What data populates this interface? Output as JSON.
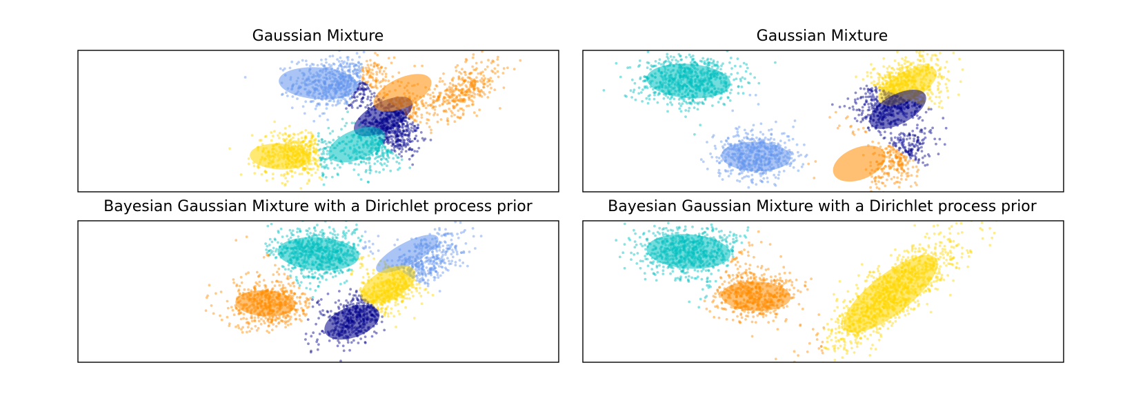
{
  "chart_data": [
    {
      "type": "scatter",
      "title": "Gaussian Mixture",
      "axes_visible": false,
      "grid": false,
      "xlim": [
        -10,
        10
      ],
      "ylim": [
        -3,
        3
      ],
      "clusters": [
        {
          "cx": 1.0,
          "cy": 1.6,
          "sx": 1.0,
          "sy": 0.55,
          "rho": 0.0,
          "n": 700
        },
        {
          "cx": 3.0,
          "cy": 0.1,
          "sx": 0.8,
          "sy": 0.6,
          "rho": 0.6,
          "n": 500
        },
        {
          "cx": 6.0,
          "cy": 1.3,
          "sx": 0.75,
          "sy": 0.6,
          "rho": 0.55,
          "n": 350
        },
        {
          "cx": 2.9,
          "cy": -1.0,
          "sx": 0.7,
          "sy": 0.55,
          "rho": 0.45,
          "n": 350
        },
        {
          "cx": -0.8,
          "cy": -1.4,
          "sx": 0.9,
          "sy": 0.5,
          "rho": 0.0,
          "n": 550
        }
      ],
      "components": [
        {
          "color": "#6495ed",
          "mean": [
            0.0,
            1.6
          ],
          "width": 3.3,
          "height": 1.35,
          "angle": -4
        },
        {
          "color": "#00008b",
          "mean": [
            2.7,
            0.2
          ],
          "width": 2.7,
          "height": 1.2,
          "angle": 28
        },
        {
          "color": "#ff8c00",
          "mean": [
            3.5,
            1.2
          ],
          "width": 2.6,
          "height": 1.25,
          "angle": 25
        },
        {
          "color": "#00bfbf",
          "mean": [
            1.6,
            -1.0
          ],
          "width": 2.5,
          "height": 1.25,
          "angle": 22
        },
        {
          "color": "#ffd700",
          "mean": [
            -1.6,
            -1.5
          ],
          "width": 2.5,
          "height": 1.1,
          "angle": -3
        }
      ]
    },
    {
      "type": "scatter",
      "title": "Gaussian Mixture",
      "axes_visible": false,
      "grid": false,
      "xlim": [
        -10,
        10
      ],
      "ylim": [
        -3,
        3
      ],
      "clusters": [
        {
          "cx": -5.6,
          "cy": 1.7,
          "sx": 1.1,
          "sy": 0.55,
          "rho": 0.0,
          "n": 700
        },
        {
          "cx": -2.8,
          "cy": -1.5,
          "sx": 0.85,
          "sy": 0.5,
          "rho": 0.0,
          "n": 550
        },
        {
          "cx": 3.2,
          "cy": -1.5,
          "sx": 0.65,
          "sy": 0.6,
          "rho": 0.4,
          "n": 350
        },
        {
          "cx": 3.1,
          "cy": 0.7,
          "sx": 0.9,
          "sy": 0.55,
          "rho": 0.55,
          "n": 450
        },
        {
          "cx": 3.2,
          "cy": 1.7,
          "sx": 0.85,
          "sy": 0.6,
          "rho": 0.6,
          "n": 450
        }
      ],
      "components": [
        {
          "color": "#00bfbf",
          "mean": [
            -5.6,
            1.7
          ],
          "width": 3.5,
          "height": 1.45,
          "angle": -4
        },
        {
          "color": "#6495ed",
          "mean": [
            -2.8,
            -1.5
          ],
          "width": 2.9,
          "height": 1.25,
          "angle": -2
        },
        {
          "color": "#ffd700",
          "mean": [
            3.5,
            1.5
          ],
          "width": 2.7,
          "height": 1.2,
          "angle": 28
        },
        {
          "color": "#00008b",
          "mean": [
            3.1,
            0.5
          ],
          "width": 2.6,
          "height": 1.25,
          "angle": 28
        },
        {
          "color": "#ff8c00",
          "mean": [
            1.5,
            -1.8
          ],
          "width": 2.3,
          "height": 1.35,
          "angle": 22
        }
      ]
    },
    {
      "type": "scatter",
      "title": "Bayesian Gaussian Mixture with a Dirichlet process prior",
      "axes_visible": false,
      "grid": false,
      "xlim": [
        -10,
        10
      ],
      "ylim": [
        -3,
        3
      ],
      "clusters": [
        {
          "cx": 0.0,
          "cy": 1.6,
          "sx": 1.0,
          "sy": 0.55,
          "rho": 0.0,
          "n": 700
        },
        {
          "cx": 3.0,
          "cy": 0.1,
          "sx": 0.8,
          "sy": 0.6,
          "rho": 0.6,
          "n": 500
        },
        {
          "cx": 4.6,
          "cy": 1.4,
          "sx": 0.75,
          "sy": 0.6,
          "rho": 0.55,
          "n": 350
        },
        {
          "cx": 1.5,
          "cy": -1.2,
          "sx": 0.7,
          "sy": 0.55,
          "rho": 0.45,
          "n": 350
        },
        {
          "cx": -2.0,
          "cy": -0.5,
          "sx": 0.9,
          "sy": 0.5,
          "rho": 0.0,
          "n": 550
        }
      ],
      "components": [
        {
          "color": "#00bfbf",
          "mean": [
            0.0,
            1.6
          ],
          "width": 3.4,
          "height": 1.4,
          "angle": -4
        },
        {
          "color": "#6495ed",
          "mean": [
            3.7,
            1.6
          ],
          "width": 2.9,
          "height": 0.95,
          "angle": 28
        },
        {
          "color": "#ffd700",
          "mean": [
            2.9,
            0.3
          ],
          "width": 2.5,
          "height": 1.25,
          "angle": 28
        },
        {
          "color": "#00008b",
          "mean": [
            1.4,
            -1.3
          ],
          "width": 2.4,
          "height": 1.3,
          "angle": 20
        },
        {
          "color": "#ff8c00",
          "mean": [
            -2.2,
            -0.5
          ],
          "width": 2.5,
          "height": 1.1,
          "angle": -3
        }
      ]
    },
    {
      "type": "scatter",
      "title": "Bayesian Gaussian Mixture with a Dirichlet process prior",
      "axes_visible": false,
      "grid": false,
      "xlim": [
        -10,
        10
      ],
      "ylim": [
        -3,
        3
      ],
      "clusters": [
        {
          "cx": -5.6,
          "cy": 1.7,
          "sx": 1.1,
          "sy": 0.55,
          "rho": 0.0,
          "n": 700
        },
        {
          "cx": -2.8,
          "cy": -0.2,
          "sx": 0.85,
          "sy": 0.5,
          "rho": 0.0,
          "n": 550
        },
        {
          "cx": 2.8,
          "cy": -0.1,
          "sx": 1.4,
          "sy": 1.2,
          "rho": 0.85,
          "n": 1200
        }
      ],
      "components": [
        {
          "color": "#00bfbf",
          "mean": [
            -5.6,
            1.7
          ],
          "width": 3.5,
          "height": 1.45,
          "angle": -4
        },
        {
          "color": "#ff8c00",
          "mean": [
            -2.8,
            -0.2
          ],
          "width": 2.9,
          "height": 1.25,
          "angle": -2
        },
        {
          "color": "#ffd700",
          "mean": [
            2.8,
            -0.1
          ],
          "width": 4.8,
          "height": 1.7,
          "angle": 38
        }
      ]
    }
  ]
}
